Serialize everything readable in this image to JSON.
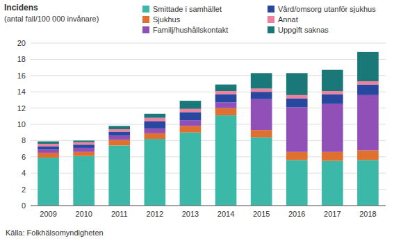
{
  "chart_data": {
    "type": "bar",
    "stacked": true,
    "y_label": "Incidens",
    "subtitle": "(antal fall/100 000 invånare)",
    "annotations": [
      "Källa: Folkhälsomyndigheten"
    ],
    "categories": [
      "2009",
      "2010",
      "2011",
      "2012",
      "2013",
      "2014",
      "2015",
      "2016",
      "2017",
      "2018"
    ],
    "series": [
      {
        "name": "Smittade i samhället",
        "color": "#3CB8A9",
        "values": [
          5.9,
          6.1,
          7.4,
          8.2,
          9.0,
          11.1,
          8.4,
          5.6,
          5.5,
          5.6
        ]
      },
      {
        "name": "Sjukhus",
        "color": "#E07030",
        "values": [
          0.6,
          0.5,
          0.7,
          0.7,
          0.8,
          0.9,
          0.9,
          1.0,
          1.1,
          1.2
        ]
      },
      {
        "name": "Familj/hushållskontakt",
        "color": "#9050B8",
        "values": [
          0.4,
          0.5,
          0.5,
          0.6,
          0.7,
          0.7,
          3.8,
          5.5,
          5.9,
          6.8
        ]
      },
      {
        "name": "Vård/omsorg utanför sjukhus",
        "color": "#2848A0",
        "values": [
          0.4,
          0.4,
          0.5,
          0.9,
          1.0,
          1.0,
          0.9,
          1.1,
          1.2,
          1.3
        ]
      },
      {
        "name": "Annat",
        "color": "#F080A0",
        "values": [
          0.3,
          0.3,
          0.3,
          0.4,
          0.4,
          0.4,
          0.4,
          0.4,
          0.4,
          0.4
        ]
      },
      {
        "name": "Uppgift saknas",
        "color": "#1A7878",
        "values": [
          0.3,
          0.2,
          0.4,
          0.5,
          1.0,
          0.8,
          1.9,
          2.7,
          2.6,
          3.6
        ]
      }
    ],
    "ylim": [
      0,
      20
    ],
    "yticks": [
      0,
      2,
      4,
      6,
      8,
      10,
      12,
      14,
      16,
      18,
      20
    ],
    "grid": true,
    "legend": "top"
  }
}
